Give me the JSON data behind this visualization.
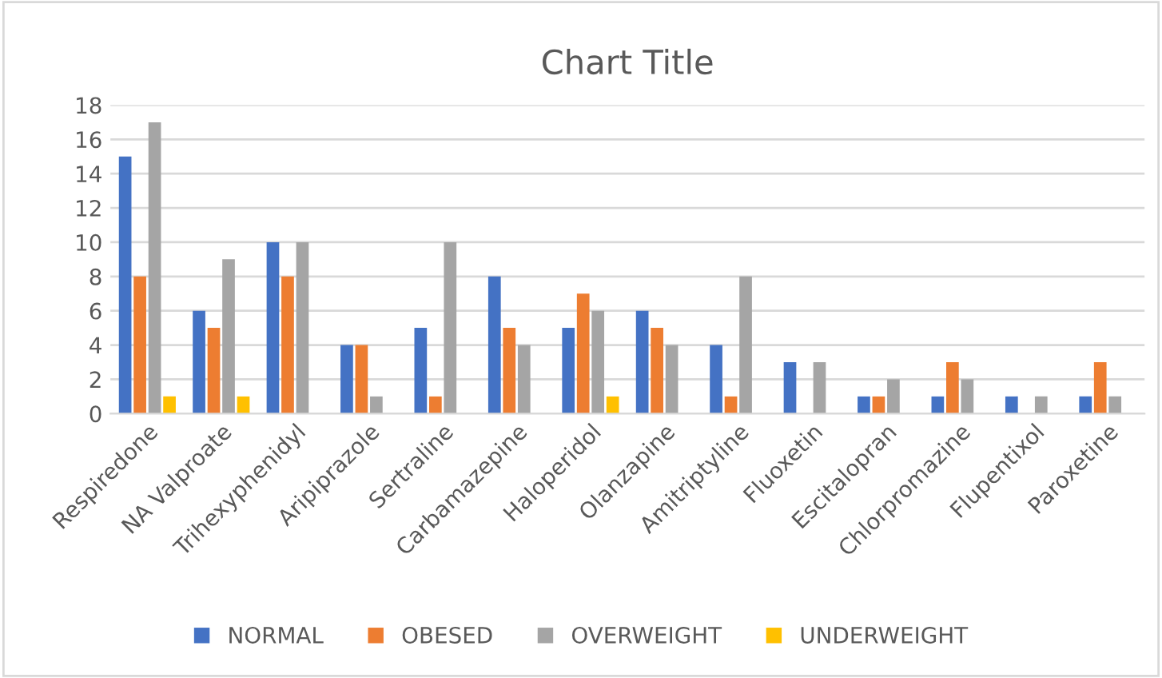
{
  "chart_data": {
    "type": "bar",
    "title": "Chart Title",
    "categories": [
      "Respiredone",
      "NA Valproate",
      "Trihexyphenidyl",
      "Aripiprazole",
      "Sertraline",
      "Carbamazepine",
      "Haloperidol",
      "Olanzapine",
      "Amitriptyline",
      "Fluoxetin",
      "Escitalopran",
      "Chlorpromazine",
      "Flupentixol",
      "Paroxetine"
    ],
    "series": [
      {
        "name": "NORMAL",
        "color": "#4472c4",
        "values": [
          15,
          6,
          10,
          4,
          5,
          8,
          5,
          6,
          4,
          3,
          1,
          1,
          1,
          1
        ]
      },
      {
        "name": "OBESED",
        "color": "#ed7d31",
        "values": [
          8,
          5,
          8,
          4,
          1,
          5,
          7,
          5,
          1,
          null,
          1,
          3,
          null,
          3
        ]
      },
      {
        "name": "OVERWEIGHT",
        "color": "#a5a5a5",
        "values": [
          17,
          9,
          10,
          1,
          10,
          4,
          6,
          4,
          8,
          3,
          2,
          2,
          1,
          1
        ]
      },
      {
        "name": "UNDERWEIGHT",
        "color": "#ffc000",
        "values": [
          1,
          1,
          null,
          null,
          null,
          null,
          1,
          null,
          null,
          null,
          null,
          null,
          null,
          null
        ]
      }
    ],
    "ylim": [
      0,
      18
    ],
    "yticks": [
      0,
      2,
      4,
      6,
      8,
      10,
      12,
      14,
      16,
      18
    ],
    "grid": "y",
    "legend": "bottom"
  }
}
